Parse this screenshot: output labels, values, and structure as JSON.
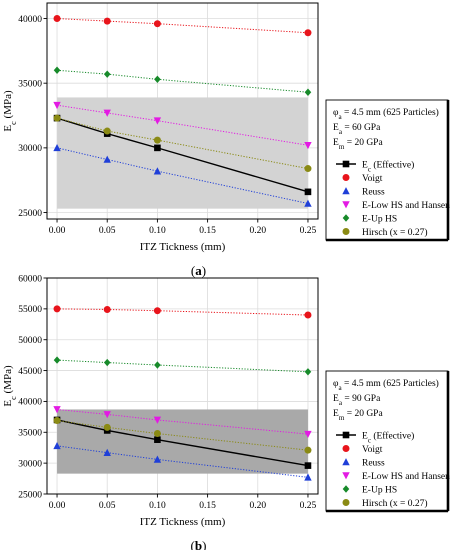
{
  "chart_data": [
    {
      "type": "line",
      "panel_label": "(a)",
      "xlabel": "ITZ Tickness (mm)",
      "ylabel": "E_c (MPa)",
      "xlim": [
        -0.01,
        0.26
      ],
      "ylim": [
        24500,
        41200
      ],
      "x_ticks": [
        "0.00",
        "0.05",
        "0.10",
        "0.15",
        "0.20",
        "0.25"
      ],
      "y_ticks": [
        "25000",
        "30000",
        "35000",
        "40000"
      ],
      "grid": true,
      "shaded_band": [
        25300,
        33900
      ],
      "legend_position": "right",
      "params": [
        "φ_a = 4.5 mm (625 Particles)",
        "E_a = 60 GPa",
        "E_m = 20 GPa"
      ],
      "x": [
        0.0,
        0.05,
        0.1,
        0.25
      ],
      "series": [
        {
          "name": "E_c (Effective)",
          "color": "#000000",
          "marker": "square",
          "line": "solid",
          "values": [
            32300,
            31100,
            30000,
            26600
          ]
        },
        {
          "name": "Voigt",
          "color": "#e8141b",
          "marker": "circle",
          "line": "dotted",
          "values": [
            40000,
            39800,
            39600,
            38900
          ]
        },
        {
          "name": "Reuss",
          "color": "#1f3fd8",
          "marker": "triangle-up",
          "line": "dotted",
          "values": [
            30000,
            29100,
            28200,
            25700
          ]
        },
        {
          "name": "E-Low HS and Hansen",
          "color": "#e31ae3",
          "marker": "triangle-down",
          "line": "dotted",
          "values": [
            33300,
            32700,
            32100,
            30200
          ]
        },
        {
          "name": "E-Up HS",
          "color": "#178a2a",
          "marker": "diamond",
          "line": "dotted",
          "values": [
            36000,
            35700,
            35300,
            34300
          ]
        },
        {
          "name": "Hirsch (x = 0.27)",
          "color": "#8a8a14",
          "marker": "circle",
          "line": "dotted",
          "values": [
            32300,
            31300,
            30600,
            28400
          ]
        }
      ]
    },
    {
      "type": "line",
      "panel_label": "(b)",
      "xlabel": "ITZ Tickness (mm)",
      "ylabel": "E_c (MPa)",
      "xlim": [
        -0.01,
        0.26
      ],
      "ylim": [
        25000,
        60000
      ],
      "x_ticks": [
        "0.00",
        "0.05",
        "0.10",
        "0.15",
        "0.20",
        "0.25"
      ],
      "y_ticks": [
        "25000",
        "30000",
        "35000",
        "40000",
        "45000",
        "50000",
        "55000",
        "60000"
      ],
      "grid": true,
      "shaded_band": [
        28300,
        38700
      ],
      "legend_position": "right",
      "params": [
        "φ_a = 4.5 mm (625 Particles)",
        "E_a = 90 GPa",
        "E_m = 20 GPa"
      ],
      "x": [
        0.0,
        0.05,
        0.1,
        0.25
      ],
      "series": [
        {
          "name": "E_c (Effective)",
          "color": "#000000",
          "marker": "square",
          "line": "solid",
          "values": [
            37000,
            35300,
            33800,
            29600
          ]
        },
        {
          "name": "Voigt",
          "color": "#e8141b",
          "marker": "circle",
          "line": "dotted",
          "values": [
            55000,
            54900,
            54700,
            54000
          ]
        },
        {
          "name": "Reuss",
          "color": "#1f3fd8",
          "marker": "triangle-up",
          "line": "dotted",
          "values": [
            32800,
            31700,
            30600,
            27700
          ]
        },
        {
          "name": "E-Low HS and Hansen",
          "color": "#e31ae3",
          "marker": "triangle-down",
          "line": "dotted",
          "values": [
            38700,
            37900,
            37000,
            34700
          ]
        },
        {
          "name": "E-Up HS",
          "color": "#178a2a",
          "marker": "diamond",
          "line": "dotted",
          "values": [
            46700,
            46300,
            45900,
            44800
          ]
        },
        {
          "name": "Hirsch (x = 0.27)",
          "color": "#8a8a14",
          "marker": "circle",
          "line": "dotted",
          "values": [
            36900,
            35800,
            34800,
            32100
          ]
        }
      ]
    }
  ]
}
